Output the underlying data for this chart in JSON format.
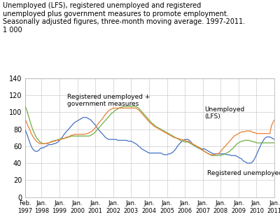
{
  "title_line1": "Unemployed (LFS), registered unemployed and registered",
  "title_line2": "unemployed plus government measures to promote employment.",
  "title_line3": "Seasonally adjusted figures, three-month moving average. 1997-2011.",
  "title_line4": "1 000",
  "ylim": [
    0,
    140
  ],
  "yticks": [
    0,
    20,
    40,
    60,
    80,
    100,
    120,
    140
  ],
  "xtick_labels": [
    "Feb.\n1997",
    "Jan.\n1998",
    "Jan.\n1999",
    "Jan.\n2000",
    "Jan.\n2001",
    "Jan.\n2002",
    "Jan.\n2003",
    "Jan.\n2004",
    "Jan.\n2005",
    "Jan.\n2006",
    "Jan.\n2007",
    "Jan.\n2008",
    "Jan.\n2009",
    "Jan.\n2010",
    "Jan.\n2011"
  ],
  "xtick_positions": [
    0,
    11,
    23,
    35,
    47,
    59,
    71,
    83,
    95,
    107,
    119,
    131,
    143,
    155,
    167
  ],
  "color_lfs": "#4472C4",
  "color_reg": "#70AD47",
  "color_reg_gov": "#ED7D31",
  "lfs": [
    79,
    75,
    70,
    65,
    60,
    57,
    55,
    54,
    54,
    55,
    57,
    58,
    58,
    59,
    60,
    61,
    62,
    62,
    62,
    63,
    63,
    64,
    65,
    67,
    69,
    71,
    74,
    76,
    78,
    80,
    82,
    84,
    86,
    88,
    89,
    90,
    91,
    92,
    93,
    94,
    94,
    94,
    93,
    92,
    91,
    89,
    87,
    85,
    82,
    80,
    78,
    76,
    74,
    72,
    70,
    69,
    68,
    68,
    68,
    68,
    68,
    68,
    67,
    67,
    67,
    67,
    67,
    67,
    67,
    66,
    66,
    66,
    65,
    64,
    63,
    62,
    60,
    59,
    57,
    56,
    55,
    54,
    53,
    52,
    52,
    52,
    52,
    52,
    52,
    52,
    52,
    52,
    51,
    50,
    50,
    50,
    51,
    51,
    52,
    53,
    55,
    57,
    60,
    62,
    64,
    66,
    67,
    68,
    68,
    68,
    67,
    65,
    63,
    61,
    60,
    59,
    58,
    58,
    57,
    57,
    57,
    56,
    55,
    54,
    53,
    52,
    51,
    51,
    51,
    51,
    51,
    51,
    51,
    51,
    51,
    50,
    50,
    50,
    49,
    49,
    49,
    49,
    48,
    47,
    46,
    45,
    43,
    42,
    41,
    40,
    40,
    40,
    41,
    43,
    46,
    50,
    54,
    58,
    62,
    65,
    68,
    70,
    71,
    71,
    71,
    70,
    69,
    68,
    67
  ],
  "reg": [
    107,
    103,
    97,
    91,
    85,
    80,
    76,
    72,
    69,
    67,
    65,
    64,
    63,
    63,
    63,
    63,
    64,
    65,
    66,
    66,
    67,
    67,
    68,
    68,
    69,
    69,
    69,
    70,
    70,
    71,
    71,
    72,
    72,
    72,
    72,
    72,
    72,
    72,
    72,
    72,
    72,
    72,
    72,
    72,
    73,
    74,
    75,
    77,
    79,
    81,
    83,
    85,
    87,
    89,
    91,
    93,
    95,
    97,
    99,
    100,
    102,
    103,
    104,
    105,
    106,
    106,
    107,
    107,
    107,
    107,
    107,
    107,
    107,
    107,
    107,
    106,
    105,
    103,
    101,
    99,
    97,
    95,
    93,
    91,
    89,
    87,
    86,
    84,
    83,
    82,
    81,
    80,
    79,
    78,
    77,
    76,
    75,
    74,
    73,
    72,
    71,
    70,
    69,
    68,
    67,
    66,
    66,
    65,
    65,
    65,
    64,
    63,
    62,
    61,
    60,
    59,
    58,
    57,
    56,
    55,
    54,
    53,
    52,
    51,
    50,
    49,
    49,
    49,
    49,
    49,
    49,
    49,
    50,
    50,
    51,
    52,
    53,
    54,
    56,
    57,
    59,
    61,
    63,
    64,
    65,
    66,
    66,
    67,
    67,
    67,
    67,
    66,
    66,
    65,
    65,
    64,
    64,
    64,
    64,
    64,
    64,
    64,
    64,
    64,
    64,
    64,
    64,
    64,
    64
  ],
  "reg_gov": [
    91,
    88,
    83,
    80,
    75,
    72,
    69,
    67,
    65,
    64,
    63,
    63,
    63,
    63,
    63,
    64,
    64,
    65,
    65,
    66,
    66,
    67,
    67,
    68,
    68,
    69,
    69,
    70,
    71,
    71,
    72,
    73,
    73,
    74,
    74,
    74,
    74,
    74,
    74,
    74,
    74,
    75,
    75,
    76,
    77,
    78,
    80,
    82,
    84,
    87,
    89,
    91,
    93,
    96,
    98,
    100,
    102,
    103,
    104,
    105,
    105,
    105,
    105,
    105,
    105,
    105,
    105,
    105,
    105,
    105,
    105,
    105,
    105,
    105,
    105,
    104,
    103,
    101,
    99,
    97,
    95,
    93,
    91,
    89,
    87,
    86,
    84,
    83,
    82,
    81,
    80,
    79,
    78,
    77,
    76,
    75,
    74,
    73,
    72,
    71,
    70,
    70,
    69,
    69,
    68,
    68,
    67,
    67,
    66,
    66,
    65,
    64,
    63,
    62,
    61,
    60,
    59,
    58,
    57,
    56,
    54,
    53,
    52,
    51,
    50,
    50,
    50,
    50,
    51,
    51,
    52,
    54,
    56,
    58,
    60,
    62,
    64,
    66,
    68,
    70,
    72,
    73,
    74,
    75,
    76,
    77,
    77,
    77,
    78,
    78,
    78,
    78,
    77,
    76,
    76,
    75,
    75,
    75,
    75,
    75,
    75,
    75,
    75,
    75,
    75,
    84,
    88,
    91,
    92
  ],
  "ann_reg_gov_x": 28,
  "ann_reg_gov_y": 122,
  "ann_lfs_x": 120,
  "ann_lfs_y": 107,
  "ann_reg_x": 122,
  "ann_reg_y": 32
}
